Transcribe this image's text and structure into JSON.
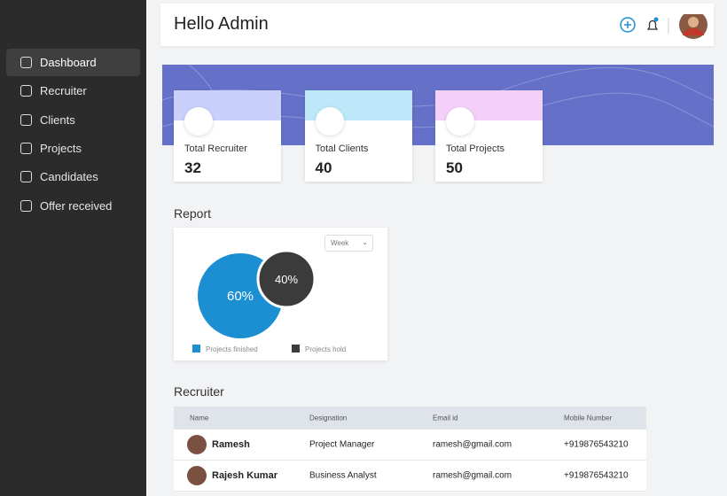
{
  "sidebar": {
    "menu": [
      "Dashboard",
      "Recruiter",
      "Clients",
      "Projects",
      "Candidates",
      "Offer received"
    ],
    "active": 0
  },
  "header": {
    "title": "Hello Admin"
  },
  "stats": [
    {
      "label": "Total Recruiter",
      "value": 32,
      "color": "#c8d0fb"
    },
    {
      "label": "Total Clients",
      "value": 40,
      "color": "#bde8fa"
    },
    {
      "label": "Total Projects",
      "value": 50,
      "color": "#f3cffa"
    }
  ],
  "report": {
    "title": "Report",
    "filter": "Week",
    "segments": [
      {
        "name": "Projects finished",
        "value": 60,
        "label": "60%",
        "color": "#1b8fd2"
      },
      {
        "name": "Projects hold",
        "value": 40,
        "label": "40%",
        "color": "#3b3b3b"
      }
    ]
  },
  "recruiter_table": {
    "title": "Recruiter",
    "columns": [
      "Name",
      "Designation",
      "Email id",
      "Mobile Number"
    ],
    "rows": [
      [
        "Ramesh",
        "Project Manager",
        "ramesh@gmail.com",
        "+919876543210"
      ],
      [
        "Rajesh Kumar",
        "Business Analyst",
        "ramesh@gmail.com",
        "+919876543210"
      ]
    ]
  }
}
